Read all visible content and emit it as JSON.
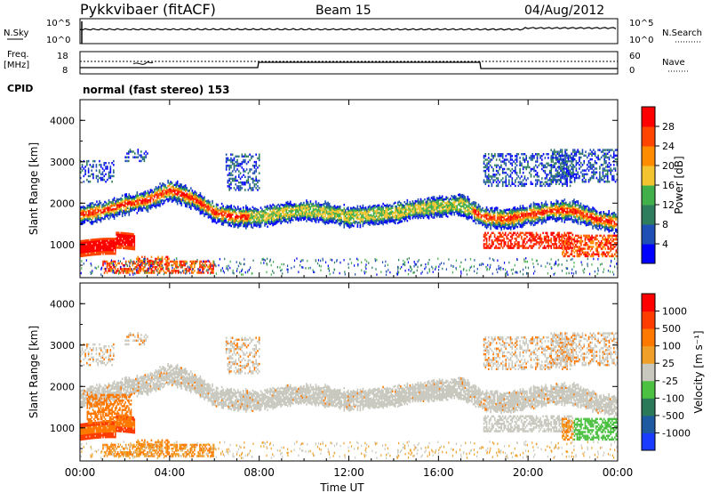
{
  "header": {
    "title": "Pykkvibaer (fitACF)",
    "beam": "Beam 15",
    "date": "04/Aug/2012"
  },
  "panel_noise": {
    "left_label": "N.Sky",
    "right_label": "N.Search",
    "left_ticks": [
      "10^5",
      "10^0"
    ],
    "right_ticks": [
      "10^5",
      "10^0"
    ]
  },
  "panel_freq": {
    "left_label_1": "Freq.",
    "left_label_2": "[MHz]",
    "right_label": "Nave",
    "left_ticks": [
      "18",
      "8"
    ],
    "right_ticks": [
      "60",
      "0"
    ]
  },
  "cpid": {
    "label": "CPID",
    "text": "normal (fast stereo) 153"
  },
  "x_axis": {
    "label": "Time UT",
    "ticks": [
      "00:00",
      "04:00",
      "08:00",
      "12:00",
      "16:00",
      "20:00",
      "00:00"
    ]
  },
  "power_colorbar": {
    "label": "Power [dB]",
    "ticks": [
      "4",
      "8",
      "12",
      "16",
      "20",
      "24",
      "28"
    ],
    "colors": [
      "#0000ff",
      "#1f4fb4",
      "#2e7d5e",
      "#42b04a",
      "#f4c430",
      "#ff8c00",
      "#ff4500",
      "#ff0000"
    ]
  },
  "velocity_colorbar": {
    "label": "Velocity [m s⁻¹]",
    "ticks": [
      "1000",
      "500",
      "100",
      "25",
      "-25",
      "-100",
      "-500",
      "-1000"
    ],
    "colors": [
      "#1a3cff",
      "#1e5aa0",
      "#2a7a5a",
      "#4cc040",
      "#c8c8be",
      "#f0a028",
      "#ff7800",
      "#ff3c00",
      "#ff0000"
    ]
  },
  "chart_data": [
    {
      "type": "heatmap",
      "title": "",
      "xlabel": "Time UT",
      "ylabel": "Slant Range [km]",
      "xlim": [
        "00:00",
        "24:00"
      ],
      "ylim": [
        200,
        4500
      ],
      "yticks": [
        1000,
        2000,
        3000,
        4000
      ],
      "colorbar_label": "Power [dB]",
      "echo_bands": [
        {
          "t": [
            0,
            1,
            2,
            3,
            4,
            5,
            6,
            7,
            8,
            9,
            10,
            11,
            12,
            13,
            14,
            15,
            16,
            17,
            18,
            19,
            20,
            21,
            22,
            23,
            24
          ],
          "range_km": [
            1700,
            1800,
            1950,
            2050,
            2300,
            2100,
            1750,
            1650,
            1650,
            1750,
            1800,
            1750,
            1650,
            1700,
            1750,
            1850,
            1900,
            1950,
            1650,
            1600,
            1700,
            1800,
            1800,
            1600,
            1500
          ],
          "power_db": 20
        }
      ]
    },
    {
      "type": "heatmap",
      "title": "",
      "xlabel": "Time UT",
      "ylabel": "Slant Range [km]",
      "xlim": [
        "00:00",
        "24:00"
      ],
      "ylim": [
        200,
        4500
      ],
      "yticks": [
        1000,
        2000,
        3000,
        4000
      ],
      "colorbar_label": "Velocity [m s⁻¹]"
    }
  ]
}
